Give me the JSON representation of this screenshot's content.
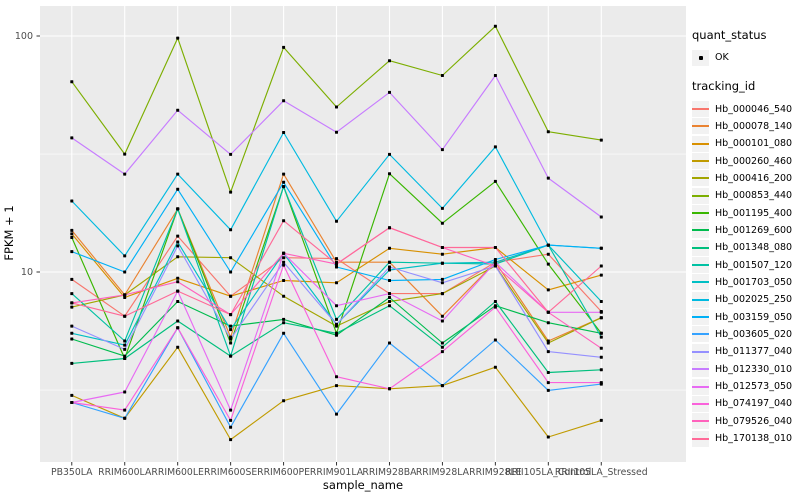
{
  "chart": {
    "y_axis_label": "FPKM + 1",
    "x_axis_label": "sample_name",
    "y_tick_labels": [
      "100",
      "10"
    ]
  },
  "legend": {
    "quant_status_title": "quant_status",
    "quant_status_items": [
      {
        "label": "OK"
      }
    ],
    "tracking_title": "tracking_id"
  },
  "colors": {
    "panel_bg": "#EBEBEB",
    "gridline": "#FFFFFF",
    "tick_mark": "#333333",
    "tick_text": "#4D4D4D",
    "legend_key_bg": "#F2F2F2",
    "point": "#000000"
  },
  "chart_data": {
    "type": "line",
    "title": "",
    "xlabel": "sample_name",
    "ylabel": "FPKM + 1",
    "y_scale": "log10",
    "ylim": [
      1.55,
      130
    ],
    "y_major_gridlines": [
      100,
      10
    ],
    "y_minor_gridlines": [
      31.6,
      3.16
    ],
    "grid": "on",
    "legend_position": "right",
    "point_shape": "black-square",
    "quant_status": "OK",
    "categories": [
      "PB350LA",
      "RRIM600LA",
      "RRIM600LE",
      "RRIM600SE",
      "RRIM600PE",
      "RRIM901LA",
      "RRIM928BA",
      "RRIM928LA",
      "RRIM928LE",
      "RRII105LA_Control",
      "RRII105LA_Stressed"
    ],
    "series": [
      {
        "name": "Hb_000046_540",
        "color": "#F8766D",
        "values": [
          9.3,
          6.5,
          14.2,
          7.9,
          11.5,
          11.4,
          8.1,
          8.1,
          11.0,
          11.9,
          6.8
        ]
      },
      {
        "name": "Hb_000078_140",
        "color": "#EA8331",
        "values": [
          15.0,
          8.0,
          18.5,
          5.3,
          26.0,
          11.0,
          11.0,
          6.5,
          11.0,
          5.1,
          6.4
        ]
      },
      {
        "name": "Hb_000101_080",
        "color": "#D89000",
        "values": [
          14.5,
          7.8,
          9.4,
          7.9,
          9.2,
          9.0,
          12.6,
          11.9,
          12.7,
          8.4,
          9.7
        ]
      },
      {
        "name": "Hb_000260_460",
        "color": "#C09B00",
        "values": [
          3.0,
          2.4,
          4.8,
          1.95,
          2.85,
          3.3,
          3.2,
          3.3,
          3.95,
          2.0,
          2.35
        ]
      },
      {
        "name": "Hb_000416_200",
        "color": "#A3A500",
        "values": [
          7.1,
          8.0,
          11.6,
          11.5,
          7.9,
          5.9,
          7.5,
          8.1,
          10.6,
          5.0,
          6.4
        ]
      },
      {
        "name": "Hb_000853_440",
        "color": "#7CAE00",
        "values": [
          64,
          31.6,
          98,
          21.8,
          89.5,
          50,
          78.6,
          68,
          110,
          39.3,
          36.2
        ]
      },
      {
        "name": "Hb_001195_400",
        "color": "#39B600",
        "values": [
          14.0,
          4.3,
          18.5,
          5.0,
          23.0,
          5.5,
          26.1,
          16.1,
          24.2,
          10.8,
          5.5
        ]
      },
      {
        "name": "Hb_001269_600",
        "color": "#00BB4E",
        "values": [
          5.2,
          4.4,
          7.5,
          5.9,
          6.3,
          5.4,
          7.8,
          5.0,
          7.2,
          6.1,
          5.5
        ]
      },
      {
        "name": "Hb_001348_080",
        "color": "#00BF7D",
        "values": [
          4.1,
          4.3,
          6.2,
          4.4,
          6.1,
          5.5,
          7.2,
          4.8,
          7.5,
          3.75,
          3.85
        ]
      },
      {
        "name": "Hb_001507_120",
        "color": "#00C1A3",
        "values": [
          8.1,
          5.1,
          18.5,
          4.4,
          23.0,
          6.3,
          11.0,
          10.9,
          10.8,
          13.0,
          5.3
        ]
      },
      {
        "name": "Hb_001703_050",
        "color": "#00BFC4",
        "values": [
          5.5,
          4.9,
          13.4,
          5.7,
          12.0,
          6.0,
          10.2,
          10.9,
          11.0,
          13.0,
          7.5
        ]
      },
      {
        "name": "Hb_002025_250",
        "color": "#00BAE0",
        "values": [
          20,
          11.7,
          26,
          15.1,
          39,
          16.4,
          31.5,
          18.6,
          33.9,
          13.0,
          12.6
        ]
      },
      {
        "name": "Hb_003159_050",
        "color": "#00B0F6",
        "values": [
          12.2,
          10.0,
          22.4,
          10.0,
          24.0,
          10.5,
          9.2,
          9.3,
          11.3,
          13.0,
          12.6
        ]
      },
      {
        "name": "Hb_003605_020",
        "color": "#35A2FF",
        "values": [
          2.8,
          2.4,
          5.8,
          2.2,
          5.5,
          2.5,
          5.0,
          3.3,
          5.15,
          3.15,
          3.35
        ]
      },
      {
        "name": "Hb_011377_040",
        "color": "#9590FF",
        "values": [
          5.9,
          4.7,
          12.9,
          5.2,
          11.0,
          6.0,
          10.5,
          9.0,
          10.6,
          4.6,
          4.35
        ]
      },
      {
        "name": "Hb_012330_010",
        "color": "#C77CFF",
        "values": [
          37,
          26,
          48.5,
          31.5,
          53.2,
          39.1,
          57.7,
          33,
          68,
          25,
          17.1
        ]
      },
      {
        "name": "Hb_012573_050",
        "color": "#E76BF3",
        "values": [
          2.8,
          3.1,
          8.3,
          2.6,
          12.0,
          7.2,
          8.1,
          6.2,
          11.0,
          6.75,
          6.75
        ]
      },
      {
        "name": "Hb_074197_040",
        "color": "#FA62DB",
        "values": [
          2.8,
          2.6,
          5.8,
          2.35,
          10.7,
          3.6,
          3.2,
          4.6,
          7.1,
          3.4,
          3.4
        ]
      },
      {
        "name": "Hb_079526_040",
        "color": "#FF62BC",
        "values": [
          7.4,
          8.0,
          9.1,
          6.6,
          12.0,
          10.8,
          15.4,
          12.7,
          10.6,
          6.75,
          4.75
        ]
      },
      {
        "name": "Hb_170138_010",
        "color": "#FF6A98",
        "values": [
          7.4,
          6.5,
          8.3,
          6.6,
          16.5,
          10.8,
          15.4,
          12.7,
          12.7,
          6.75,
          10.6
        ]
      }
    ]
  }
}
